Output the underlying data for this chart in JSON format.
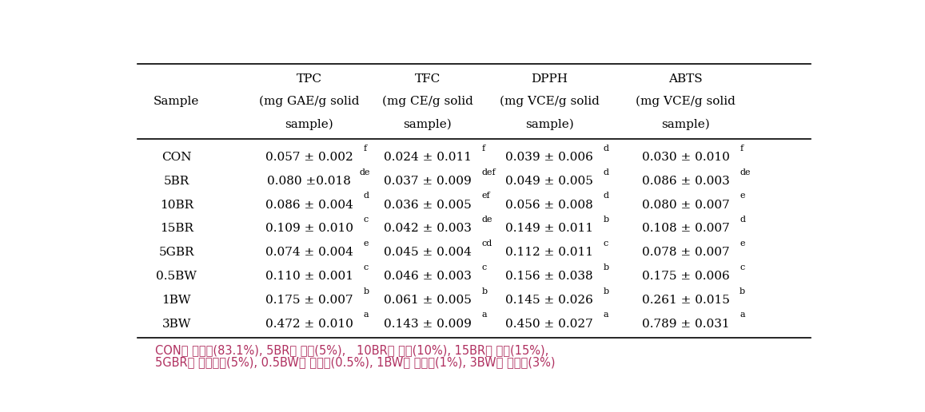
{
  "col_header_top": [
    "",
    "TPC",
    "TFC",
    "DPPH",
    "ABTS"
  ],
  "col_header_mid": [
    "Sample",
    "(mg GAE/g solid",
    "(mg CE/g solid",
    "(mg VCE/g solid",
    "(mg VCE/g solid"
  ],
  "col_header_bot": [
    "",
    "sample)",
    "sample)",
    "sample)",
    "sample)"
  ],
  "rows": [
    [
      "CON",
      "0.057 ± 0.002",
      "f",
      "0.024 ± 0.011",
      "f",
      "0.039 ± 0.006",
      "d",
      "0.030 ± 0.010",
      "f"
    ],
    [
      "5BR",
      "0.080 ±0.018",
      "de",
      "0.037 ± 0.009",
      "def",
      "0.049 ± 0.005",
      "d",
      "0.086 ± 0.003",
      "de"
    ],
    [
      "10BR",
      "0.086 ± 0.004",
      "d",
      "0.036 ± 0.005",
      "ef",
      "0.056 ± 0.008",
      "d",
      "0.080 ± 0.007",
      "e"
    ],
    [
      "15BR",
      "0.109 ± 0.010",
      "c",
      "0.042 ± 0.003",
      "de",
      "0.149 ± 0.011",
      "b",
      "0.108 ± 0.007",
      "d"
    ],
    [
      "5GBR",
      "0.074 ± 0.004",
      "e",
      "0.045 ± 0.004",
      "cd",
      "0.112 ± 0.011",
      "c",
      "0.078 ± 0.007",
      "e"
    ],
    [
      "0.5BW",
      "0.110 ± 0.001",
      "c",
      "0.046 ± 0.003",
      "c",
      "0.156 ± 0.038",
      "b",
      "0.175 ± 0.006",
      "c"
    ],
    [
      "1BW",
      "0.175 ± 0.007",
      "b",
      "0.061 ± 0.005",
      "b",
      "0.145 ± 0.026",
      "b",
      "0.261 ± 0.015",
      "b"
    ],
    [
      "3BW",
      "0.472 ± 0.010",
      "a",
      "0.143 ± 0.009",
      "a",
      "0.450 ± 0.027",
      "a",
      "0.789 ± 0.031",
      "a"
    ]
  ],
  "background_color": "#ffffff",
  "font_size": 11
}
